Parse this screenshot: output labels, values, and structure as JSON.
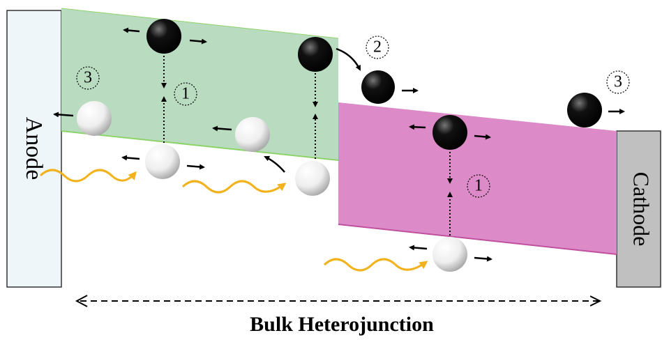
{
  "electrodes": {
    "anode": "Anode",
    "cathode": "Cathode"
  },
  "caption": "Bulk Heterojunction",
  "steps": [
    {
      "label": "3"
    },
    {
      "label": "1"
    },
    {
      "label": "2"
    },
    {
      "label": "3"
    },
    {
      "label": "1"
    }
  ]
}
